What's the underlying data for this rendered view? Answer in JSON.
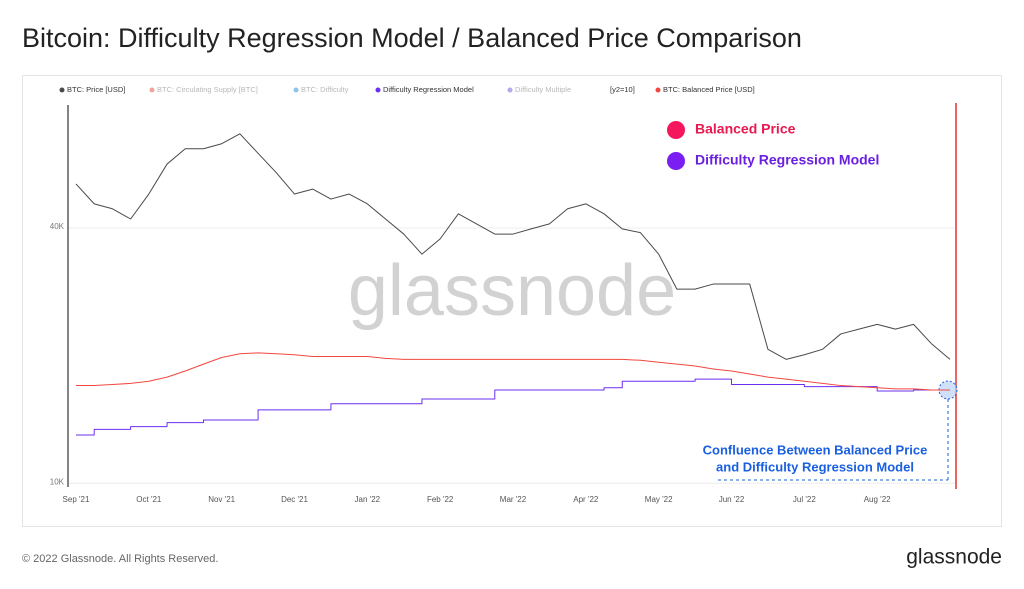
{
  "title": "Bitcoin: Difficulty Regression Model / Balanced Price Comparison",
  "footer": {
    "copyright": "© 2022 Glassnode. All Rights Reserved.",
    "logo": "glassnode"
  },
  "watermark": "glassnode",
  "chart_data": {
    "type": "line",
    "log_scale": true,
    "grid": true,
    "categories": [
      "Sep '21",
      null,
      null,
      null,
      "Oct '21",
      null,
      null,
      null,
      "Nov '21",
      null,
      null,
      null,
      "Dec '21",
      null,
      null,
      null,
      "Jan '22",
      null,
      null,
      null,
      "Feb '22",
      null,
      null,
      null,
      "Mar '22",
      null,
      null,
      null,
      "Apr '22",
      null,
      null,
      null,
      "May '22",
      null,
      null,
      null,
      "Jun '22",
      null,
      null,
      null,
      "Jul '22",
      null,
      null,
      null,
      "Aug '22",
      null,
      null,
      null,
      null
    ],
    "ylim": [
      9800,
      78000
    ],
    "yticks": [
      {
        "value": 10000,
        "label": "10K"
      },
      {
        "value": 40000,
        "label": "40K"
      }
    ],
    "series": [
      {
        "name": "BTC: Price [USD]",
        "color": "#4a4a4a",
        "values": [
          50800,
          45600,
          44400,
          42000,
          48100,
          56600,
          61500,
          61500,
          63200,
          66700,
          60000,
          54000,
          48100,
          49400,
          46800,
          48100,
          45600,
          42000,
          38700,
          34700,
          37700,
          43200,
          40900,
          38700,
          38700,
          39800,
          40900,
          44400,
          45600,
          43200,
          39800,
          39000,
          34700,
          28700,
          28700,
          29500,
          29500,
          29500,
          20700,
          19600,
          20100,
          20700,
          22500,
          23100,
          23700,
          23100,
          23700,
          21300,
          19600
        ]
      },
      {
        "name": "Difficulty Regression Model",
        "color": "#6b2ff2",
        "step": true,
        "values": [
          13000,
          13400,
          13400,
          13600,
          13600,
          13900,
          13900,
          14100,
          14100,
          14100,
          14900,
          14900,
          14900,
          14900,
          15400,
          15400,
          15400,
          15400,
          15400,
          15800,
          15800,
          15800,
          15800,
          16600,
          16600,
          16600,
          16600,
          16600,
          16600,
          16800,
          17400,
          17400,
          17400,
          17400,
          17600,
          17600,
          17100,
          17100,
          17100,
          17100,
          16900,
          16900,
          16900,
          16900,
          16500,
          16500,
          16600,
          16600,
          16600
        ]
      },
      {
        "name": "BTC: Balanced Price [USD]",
        "color": "#f2473f",
        "values": [
          17000,
          17000,
          17100,
          17200,
          17400,
          17800,
          18400,
          19100,
          19800,
          20200,
          20300,
          20200,
          20100,
          19900,
          19900,
          19900,
          19900,
          19700,
          19600,
          19600,
          19600,
          19600,
          19600,
          19600,
          19600,
          19600,
          19600,
          19600,
          19600,
          19600,
          19600,
          19500,
          19300,
          19100,
          18900,
          18600,
          18400,
          18100,
          17800,
          17600,
          17400,
          17200,
          17000,
          16900,
          16800,
          16700,
          16700,
          16600,
          16600
        ]
      }
    ],
    "hidden_series": [
      {
        "name": "BTC: Circulating Supply [BTC]",
        "color": "#f0a49c"
      },
      {
        "name": "BTC: Difficulty",
        "color": "#8fc3ea"
      },
      {
        "name": "Difficulty Multiple",
        "color": "#b7a6ee"
      }
    ],
    "legend_note": "[y2=10]",
    "annotations": {
      "markers": [
        {
          "label": "Balanced Price",
          "color": "#f5175e",
          "text_color": "#e8194f"
        },
        {
          "label": "Difficulty Regression Model",
          "color": "#7a1ef2",
          "text_color": "#6a1fe0"
        }
      ],
      "callout": [
        "Confluence Between Balanced Price",
        "and Difficulty Regression Model"
      ],
      "callout_color": "#1a5fe0"
    }
  }
}
